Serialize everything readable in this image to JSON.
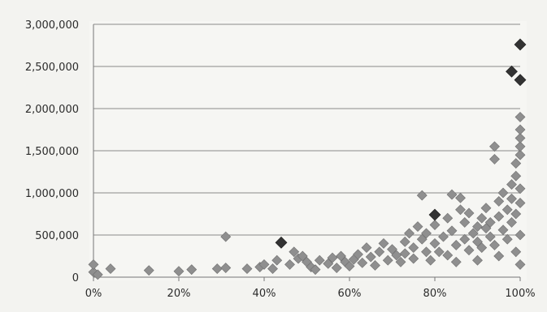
{
  "chart_data": {
    "type": "scatter",
    "title": "",
    "xlabel": "",
    "ylabel": "",
    "xlim": [
      0,
      1
    ],
    "ylim": [
      0,
      3000000
    ],
    "x_tick_labels": [
      "0%",
      "20%",
      "40%",
      "60%",
      "80%",
      "100%"
    ],
    "y_tick_labels": [
      "0",
      "500,000",
      "1,000,000",
      "1,500,000",
      "2,000,000",
      "2,500,000",
      "3,000,000"
    ],
    "grid": true,
    "legend": "none",
    "marker": "diamond",
    "colors": {
      "point": "#8f8f8f",
      "highlight": "#333333",
      "grid": "#8a8a8a",
      "axis": "#777777",
      "background": "#f3f3f0"
    },
    "series": [
      {
        "points": [
          [
            0.0,
            60000
          ],
          [
            0.0,
            150000
          ],
          [
            0.01,
            30000
          ],
          [
            0.04,
            100000
          ],
          [
            0.13,
            80000
          ],
          [
            0.2,
            70000
          ],
          [
            0.23,
            90000
          ],
          [
            0.29,
            100000
          ],
          [
            0.31,
            110000
          ],
          [
            0.31,
            480000
          ],
          [
            0.36,
            100000
          ],
          [
            0.39,
            120000
          ],
          [
            0.4,
            150000
          ],
          [
            0.42,
            100000
          ],
          [
            0.43,
            200000
          ],
          [
            0.46,
            150000
          ],
          [
            0.47,
            300000
          ],
          [
            0.48,
            220000
          ],
          [
            0.49,
            250000
          ],
          [
            0.5,
            180000
          ],
          [
            0.51,
            120000
          ],
          [
            0.52,
            90000
          ],
          [
            0.53,
            200000
          ],
          [
            0.55,
            160000
          ],
          [
            0.56,
            230000
          ],
          [
            0.57,
            110000
          ],
          [
            0.58,
            250000
          ],
          [
            0.59,
            180000
          ],
          [
            0.6,
            130000
          ],
          [
            0.61,
            210000
          ],
          [
            0.62,
            270000
          ],
          [
            0.63,
            170000
          ],
          [
            0.64,
            350000
          ],
          [
            0.65,
            240000
          ],
          [
            0.66,
            140000
          ],
          [
            0.67,
            300000
          ],
          [
            0.68,
            400000
          ],
          [
            0.69,
            200000
          ],
          [
            0.7,
            330000
          ],
          [
            0.71,
            260000
          ],
          [
            0.72,
            180000
          ],
          [
            0.73,
            420000
          ],
          [
            0.73,
            280000
          ],
          [
            0.74,
            520000
          ],
          [
            0.75,
            350000
          ],
          [
            0.75,
            220000
          ],
          [
            0.76,
            600000
          ],
          [
            0.77,
            450000
          ],
          [
            0.77,
            970000
          ],
          [
            0.78,
            300000
          ],
          [
            0.78,
            520000
          ],
          [
            0.79,
            200000
          ],
          [
            0.8,
            400000
          ],
          [
            0.8,
            620000
          ],
          [
            0.81,
            300000
          ],
          [
            0.82,
            480000
          ],
          [
            0.83,
            700000
          ],
          [
            0.83,
            260000
          ],
          [
            0.84,
            980000
          ],
          [
            0.84,
            550000
          ],
          [
            0.85,
            380000
          ],
          [
            0.86,
            800000
          ],
          [
            0.86,
            940000
          ],
          [
            0.87,
            450000
          ],
          [
            0.87,
            650000
          ],
          [
            0.88,
            320000
          ],
          [
            0.88,
            760000
          ],
          [
            0.89,
            520000
          ],
          [
            0.9,
            420000
          ],
          [
            0.9,
            600000
          ],
          [
            0.91,
            700000
          ],
          [
            0.91,
            350000
          ],
          [
            0.92,
            580000
          ],
          [
            0.92,
            820000
          ],
          [
            0.93,
            480000
          ],
          [
            0.93,
            650000
          ],
          [
            0.94,
            1400000
          ],
          [
            0.94,
            1550000
          ],
          [
            0.94,
            380000
          ],
          [
            0.95,
            720000
          ],
          [
            0.95,
            900000
          ],
          [
            0.96,
            560000
          ],
          [
            0.96,
            1000000
          ],
          [
            0.97,
            800000
          ],
          [
            0.97,
            450000
          ],
          [
            0.98,
            1100000
          ],
          [
            0.98,
            650000
          ],
          [
            0.98,
            930000
          ],
          [
            0.99,
            1200000
          ],
          [
            0.99,
            300000
          ],
          [
            0.99,
            1350000
          ],
          [
            0.99,
            750000
          ],
          [
            1.0,
            1450000
          ],
          [
            1.0,
            1550000
          ],
          [
            1.0,
            1650000
          ],
          [
            1.0,
            1900000
          ],
          [
            1.0,
            1750000
          ],
          [
            1.0,
            1050000
          ],
          [
            1.0,
            880000
          ],
          [
            1.0,
            500000
          ],
          [
            1.0,
            150000
          ],
          [
            0.9,
            200000
          ],
          [
            0.85,
            180000
          ],
          [
            0.95,
            250000
          ]
        ],
        "highlight_points": [
          [
            0.44,
            410000
          ],
          [
            0.8,
            740000
          ],
          [
            0.98,
            2440000
          ],
          [
            1.0,
            2340000
          ],
          [
            1.0,
            2760000
          ]
        ]
      }
    ]
  }
}
